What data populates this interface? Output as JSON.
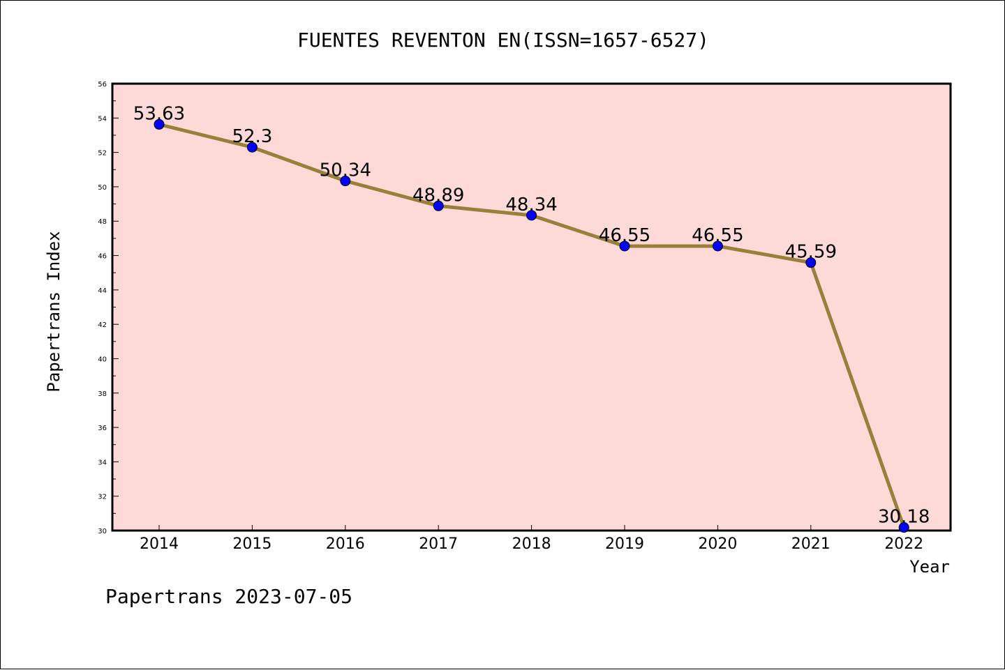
{
  "chart_data": {
    "type": "line",
    "title": "FUENTES REVENTON EN(ISSN=1657-6527)",
    "xlabel": "Year",
    "ylabel": "Papertrans Index",
    "categories": [
      "2014",
      "2015",
      "2016",
      "2017",
      "2018",
      "2019",
      "2020",
      "2021",
      "2022"
    ],
    "series": [
      {
        "values": [
          53.63,
          52.3,
          50.34,
          48.89,
          48.34,
          46.55,
          46.55,
          45.59,
          30.18
        ],
        "labels": [
          "53.63",
          "52.3",
          "50.34",
          "48.89",
          "48.34",
          "46.55",
          "46.55",
          "45.59",
          "30.18"
        ]
      }
    ],
    "ylim": [
      30,
      56
    ],
    "yticks": [
      "30",
      "32",
      "34",
      "36",
      "38",
      "40",
      "42",
      "44",
      "46",
      "48",
      "50",
      "52",
      "54",
      "56"
    ],
    "grid": false,
    "colors": {
      "plot_background": "#FDDAD7",
      "line": "#9A7F3A",
      "marker": "#0000FF"
    }
  },
  "footer": "Papertrans 2023-07-05"
}
